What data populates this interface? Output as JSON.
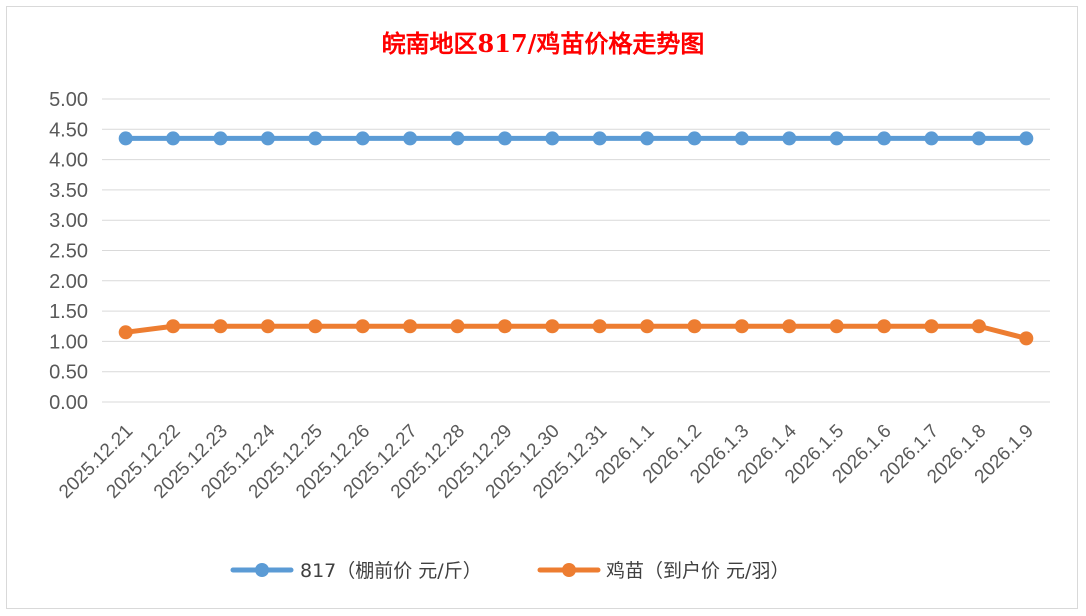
{
  "chart_data": {
    "type": "line",
    "title": "皖南地区817/鸡苗价格走势图",
    "categories": [
      "2025.12.21",
      "2025.12.22",
      "2025.12.23",
      "2025.12.24",
      "2025.12.25",
      "2025.12.26",
      "2025.12.27",
      "2025.12.28",
      "2025.12.29",
      "2025.12.30",
      "2025.12.31",
      "2026.1.1",
      "2026.1.2",
      "2026.1.3",
      "2026.1.4",
      "2026.1.5",
      "2026.1.6",
      "2026.1.7",
      "2026.1.8",
      "2026.1.9"
    ],
    "series": [
      {
        "name": "817（棚前价 元/斤）",
        "color": "#5b9bd5",
        "values": [
          4.35,
          4.35,
          4.35,
          4.35,
          4.35,
          4.35,
          4.35,
          4.35,
          4.35,
          4.35,
          4.35,
          4.35,
          4.35,
          4.35,
          4.35,
          4.35,
          4.35,
          4.35,
          4.35,
          4.35
        ]
      },
      {
        "name": "鸡苗（到户价 元/羽）",
        "color": "#ed7d31",
        "values": [
          1.15,
          1.25,
          1.25,
          1.25,
          1.25,
          1.25,
          1.25,
          1.25,
          1.25,
          1.25,
          1.25,
          1.25,
          1.25,
          1.25,
          1.25,
          1.25,
          1.25,
          1.25,
          1.25,
          1.05
        ]
      }
    ],
    "yticks": [
      "0.00",
      "0.50",
      "1.00",
      "1.50",
      "2.00",
      "2.50",
      "3.00",
      "3.50",
      "4.00",
      "4.50",
      "5.00"
    ],
    "ylim": [
      0,
      5
    ],
    "xlabel": "",
    "ylabel": "",
    "grid": true,
    "legend": "bottom"
  }
}
